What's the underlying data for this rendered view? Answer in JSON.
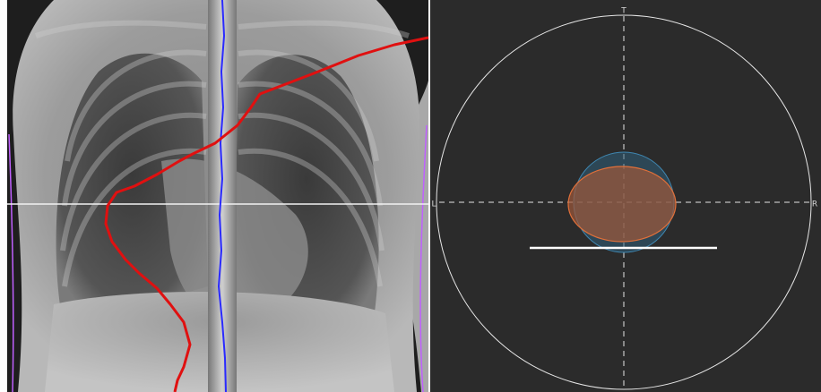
{
  "orientation_view": {
    "top_label": "T",
    "left_label": "L",
    "right_label": "R"
  }
}
